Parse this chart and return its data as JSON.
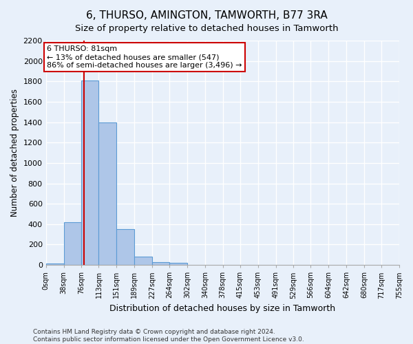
{
  "title": "6, THURSO, AMINGTON, TAMWORTH, B77 3RA",
  "subtitle": "Size of property relative to detached houses in Tamworth",
  "xlabel": "Distribution of detached houses by size in Tamworth",
  "ylabel": "Number of detached properties",
  "footer_line1": "Contains HM Land Registry data © Crown copyright and database right 2024.",
  "footer_line2": "Contains public sector information licensed under the Open Government Licence v3.0.",
  "bin_edges": [
    0,
    38,
    76,
    113,
    151,
    189,
    227,
    264,
    302,
    340,
    378,
    415,
    453,
    491,
    529,
    566,
    604,
    642,
    680,
    717,
    755
  ],
  "bar_values": [
    15,
    420,
    1810,
    1400,
    350,
    80,
    30,
    20,
    0,
    0,
    0,
    0,
    0,
    0,
    0,
    0,
    0,
    0,
    0,
    0
  ],
  "bar_color": "#aec6e8",
  "bar_edge_color": "#5b9bd5",
  "property_size": 81,
  "property_line_color": "#cc0000",
  "annotation_line1": "6 THURSO: 81sqm",
  "annotation_line2": "← 13% of detached houses are smaller (547)",
  "annotation_line3": "86% of semi-detached houses are larger (3,496) →",
  "annotation_box_color": "#ffffff",
  "annotation_box_edge_color": "#cc0000",
  "ylim": [
    0,
    2200
  ],
  "yticks": [
    0,
    200,
    400,
    600,
    800,
    1000,
    1200,
    1400,
    1600,
    1800,
    2000,
    2200
  ],
  "background_color": "#e8f0fa",
  "plot_background_color": "#e8f0fa",
  "grid_color": "#ffffff",
  "tick_label_fontsize": 7.0,
  "ytick_label_fontsize": 8.0,
  "title_fontsize": 11,
  "subtitle_fontsize": 9.5,
  "ylabel_fontsize": 8.5,
  "xlabel_fontsize": 9,
  "annotation_fontsize": 8,
  "footer_fontsize": 6.5
}
